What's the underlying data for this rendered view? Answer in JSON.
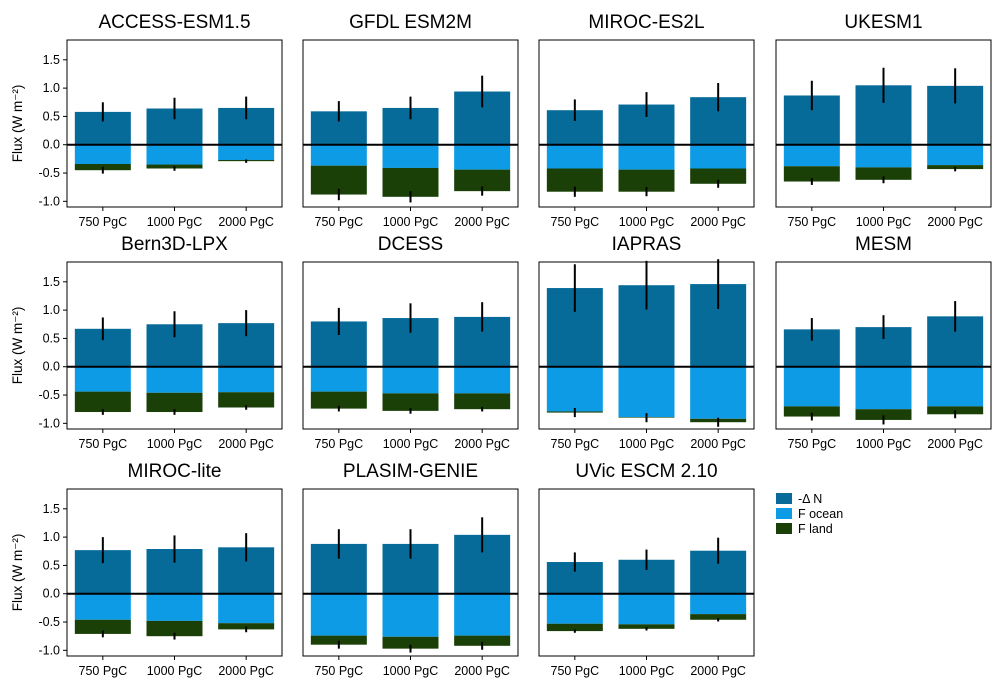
{
  "chart_data": {
    "type": "bar",
    "layout": "stacked-small-multiples",
    "ylabel": "Flux (W m⁻²)",
    "ylim": [
      -1.1,
      1.85
    ],
    "yticks": [
      -1.0,
      -0.5,
      0.0,
      0.5,
      1.0,
      1.5
    ],
    "ytick_labels": [
      "-1.0",
      "-0.5",
      "0.0",
      "0.5",
      "1.0",
      "1.5"
    ],
    "categories": [
      "750 PgC",
      "1000 PgC",
      "2000 PgC"
    ],
    "legend": {
      "placement": "right",
      "entries": [
        {
          "key": "neg_delta_n",
          "label": "-Δ N",
          "color": "#076b9a"
        },
        {
          "key": "f_ocean",
          "label": "F ocean",
          "color": "#0d9be6"
        },
        {
          "key": "f_land",
          "label": "F land",
          "color": "#1a4008"
        }
      ]
    },
    "panels": [
      {
        "title": "ACCESS-ESM1.5",
        "neg_delta_n": [
          0.58,
          0.64,
          0.65
        ],
        "neg_delta_n_err": [
          0.17,
          0.19,
          0.2
        ],
        "f_ocean": [
          -0.34,
          -0.35,
          -0.27
        ],
        "f_land": [
          -0.11,
          -0.07,
          -0.02
        ],
        "total_err": [
          0.06,
          0.04,
          0.03
        ]
      },
      {
        "title": "GFDL ESM2M",
        "neg_delta_n": [
          0.59,
          0.65,
          0.94
        ],
        "neg_delta_n_err": [
          0.18,
          0.2,
          0.28
        ],
        "f_ocean": [
          -0.37,
          -0.41,
          -0.44
        ],
        "f_land": [
          -0.51,
          -0.51,
          -0.38
        ],
        "total_err": [
          0.1,
          0.1,
          0.08
        ]
      },
      {
        "title": "MIROC-ES2L",
        "neg_delta_n": [
          0.61,
          0.71,
          0.84
        ],
        "neg_delta_n_err": [
          0.19,
          0.22,
          0.25
        ],
        "f_ocean": [
          -0.42,
          -0.44,
          -0.42
        ],
        "f_land": [
          -0.41,
          -0.39,
          -0.27
        ],
        "total_err": [
          0.09,
          0.08,
          0.07
        ]
      },
      {
        "title": "UKESM1",
        "neg_delta_n": [
          0.87,
          1.05,
          1.04
        ],
        "neg_delta_n_err": [
          0.26,
          0.31,
          0.31
        ],
        "f_ocean": [
          -0.38,
          -0.4,
          -0.36
        ],
        "f_land": [
          -0.27,
          -0.22,
          -0.07
        ],
        "total_err": [
          0.06,
          0.06,
          0.04
        ]
      },
      {
        "title": "Bern3D-LPX",
        "neg_delta_n": [
          0.67,
          0.75,
          0.77
        ],
        "neg_delta_n_err": [
          0.2,
          0.23,
          0.23
        ],
        "f_ocean": [
          -0.44,
          -0.46,
          -0.45
        ],
        "f_land": [
          -0.36,
          -0.34,
          -0.27
        ],
        "total_err": [
          0.05,
          0.05,
          0.04
        ]
      },
      {
        "title": "DCESS",
        "neg_delta_n": [
          0.8,
          0.86,
          0.88
        ],
        "neg_delta_n_err": [
          0.24,
          0.26,
          0.26
        ],
        "f_ocean": [
          -0.44,
          -0.47,
          -0.47
        ],
        "f_land": [
          -0.3,
          -0.31,
          -0.28
        ],
        "total_err": [
          0.05,
          0.05,
          0.04
        ]
      },
      {
        "title": "IAPRAS",
        "neg_delta_n": [
          1.39,
          1.44,
          1.46
        ],
        "neg_delta_n_err": [
          0.42,
          0.43,
          0.44
        ],
        "f_ocean": [
          -0.79,
          -0.89,
          -0.92
        ],
        "f_land": [
          -0.02,
          -0.01,
          -0.06
        ],
        "total_err": [
          0.08,
          0.08,
          0.08
        ]
      },
      {
        "title": "MESM",
        "neg_delta_n": [
          0.66,
          0.7,
          0.89
        ],
        "neg_delta_n_err": [
          0.2,
          0.21,
          0.27
        ],
        "f_ocean": [
          -0.7,
          -0.75,
          -0.7
        ],
        "f_land": [
          -0.18,
          -0.19,
          -0.14
        ],
        "total_err": [
          0.07,
          0.08,
          0.07
        ]
      },
      {
        "title": "MIROC-lite",
        "neg_delta_n": [
          0.77,
          0.79,
          0.82
        ],
        "neg_delta_n_err": [
          0.23,
          0.24,
          0.25
        ],
        "f_ocean": [
          -0.46,
          -0.48,
          -0.52
        ],
        "f_land": [
          -0.25,
          -0.27,
          -0.11
        ],
        "total_err": [
          0.06,
          0.06,
          0.05
        ]
      },
      {
        "title": "PLASIM-GENIE",
        "neg_delta_n": [
          0.88,
          0.88,
          1.04
        ],
        "neg_delta_n_err": [
          0.26,
          0.26,
          0.31
        ],
        "f_ocean": [
          -0.74,
          -0.76,
          -0.74
        ],
        "f_land": [
          -0.16,
          -0.21,
          -0.18
        ],
        "total_err": [
          0.07,
          0.07,
          0.07
        ]
      },
      {
        "title": "UVic ESCM 2.10",
        "neg_delta_n": [
          0.56,
          0.6,
          0.76
        ],
        "neg_delta_n_err": [
          0.17,
          0.18,
          0.23
        ],
        "f_ocean": [
          -0.53,
          -0.54,
          -0.36
        ],
        "f_land": [
          -0.13,
          -0.08,
          -0.1
        ],
        "total_err": [
          0.03,
          0.03,
          0.03
        ]
      }
    ]
  }
}
